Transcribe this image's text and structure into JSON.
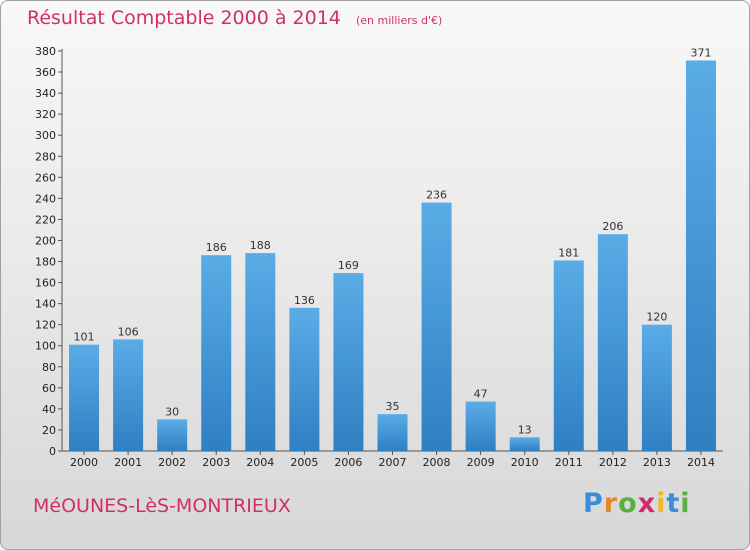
{
  "title": "Résultat Comptable 2000 à 2014",
  "subtitle": "(en milliers d'€)",
  "commune": "MéOUNES-LèS-MONTRIEUX",
  "logo": {
    "letters": [
      "P",
      "r",
      "o",
      "x",
      "i",
      "t",
      "i"
    ],
    "colors": [
      "#3a8ed8",
      "#e4862c",
      "#5ab03c",
      "#d42a6a",
      "#f1b82c",
      "#3a8ed8",
      "#5ab03c"
    ]
  },
  "colors": {
    "bar_light": "#5aace6",
    "bar_dark": "#2f7fc3",
    "accent": "#d12f6b"
  },
  "chart_data": {
    "type": "bar",
    "title": "Résultat Comptable 2000 à 2014",
    "subtitle": "(en milliers d'€)",
    "xlabel": "",
    "ylabel": "",
    "categories": [
      "2000",
      "2001",
      "2002",
      "2003",
      "2004",
      "2005",
      "2006",
      "2007",
      "2008",
      "2009",
      "2010",
      "2011",
      "2012",
      "2013",
      "2014"
    ],
    "values": [
      101,
      106,
      30,
      186,
      188,
      136,
      169,
      35,
      236,
      47,
      13,
      181,
      206,
      120,
      371
    ],
    "ylim": [
      0,
      380
    ],
    "yticks": [
      0,
      20,
      40,
      60,
      80,
      100,
      120,
      140,
      160,
      180,
      200,
      220,
      240,
      260,
      280,
      300,
      320,
      340,
      360,
      380
    ],
    "grid": false,
    "legend": "none",
    "data_labels": true
  }
}
